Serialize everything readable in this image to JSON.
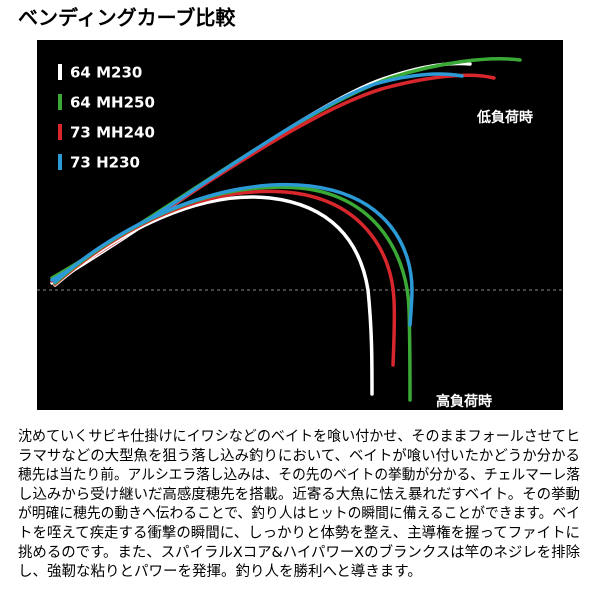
{
  "title": "ベンディングカーブ比較",
  "legend": [
    {
      "name": "64 M230",
      "color": "#ffffff"
    },
    {
      "name": "64 MH250",
      "color": "#3aa935"
    },
    {
      "name": "73 MH240",
      "color": "#d7262c"
    },
    {
      "name": "73 H230",
      "color": "#2c9ad6"
    }
  ],
  "labels": {
    "low_load": "低負荷時",
    "high_load": "高負荷時"
  },
  "description": [
    "沈めていくサビキ仕掛けにイワシなどのベイトを喰い付かせ、そのままフォールさせてヒ",
    "ラマサなどの大型魚を狙う落し込み釣りにおいて、ベイトが喰い付いたかどうか分かる",
    "穂先は当たり前。アルシエラ落し込みは、その先のベイトの挙動が分かる、チェルマーレ落",
    "し込みから受け継いだ高感度穂先を搭載。近寄る大魚に怯え暴れだすベイト。その挙動",
    "が明確に穂先の動きへ伝わることで、釣り人はヒットの瞬間に備えることができます。ベイ",
    "トを咥えて疾走する衝撃の瞬間に、しっかりと体勢を整え、主導権を握ってファイトに",
    "挑めるのです。また、スパイラルXコア&ハイパワーXのブランクスは竿のネジレを排除",
    "し、強靭な粘りとパワーを発揮。釣り人を勝利へと導きます。"
  ]
}
